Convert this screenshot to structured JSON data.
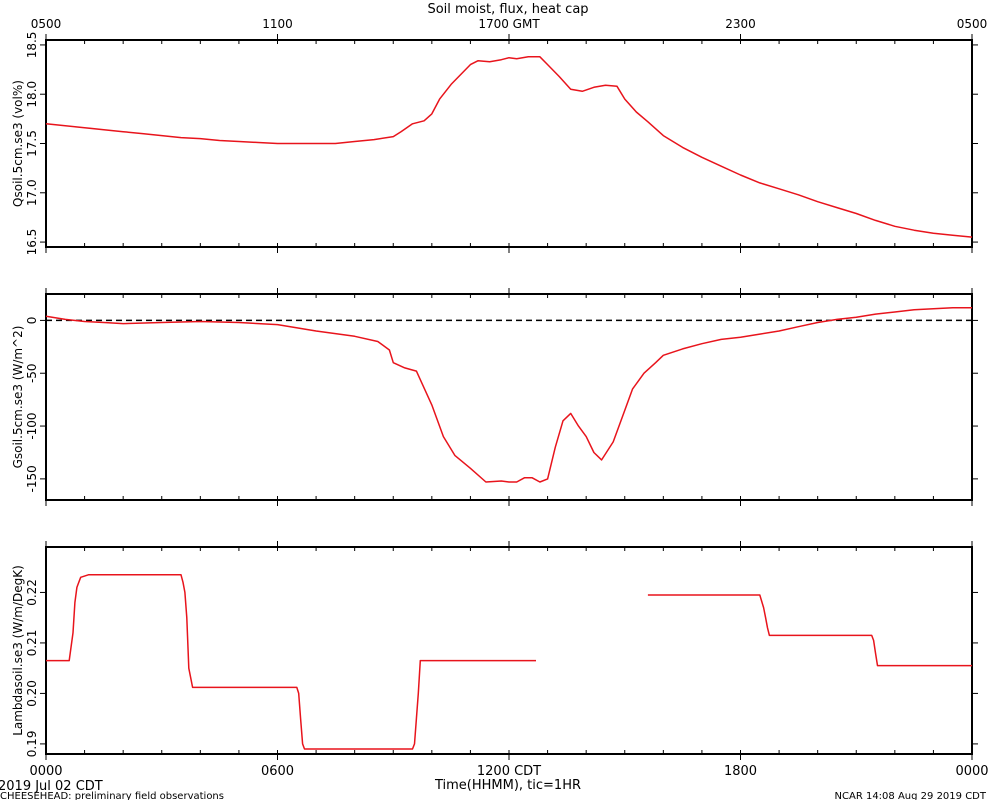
{
  "chart_data": [
    {
      "type": "line",
      "title": "Soil moist, flux, heat cap",
      "ylabel": "Qsoil.5cm.se3 (vol%)",
      "ylim": [
        16.45,
        18.55
      ],
      "yticks": [
        16.5,
        17.0,
        17.5,
        18.0,
        18.5
      ],
      "ytick_labels": [
        "16.5",
        "17.0",
        "17.5",
        "18.0",
        "18.5"
      ],
      "top_axis_ticks": [
        0,
        6,
        12,
        18,
        24
      ],
      "top_axis_labels": [
        "0500",
        "1100",
        "1700 GMT",
        "2300",
        "0500"
      ],
      "color": "#e8141c",
      "series": [
        {
          "x": [
            0,
            0.5,
            1,
            1.5,
            2,
            2.5,
            3,
            3.5,
            4,
            4.5,
            5,
            5.5,
            6,
            6.5,
            7,
            7.5,
            8,
            8.5,
            9,
            9.2,
            9.5,
            9.8,
            10,
            10.2,
            10.5,
            10.8,
            11,
            11.2,
            11.5,
            11.8,
            12,
            12.2,
            12.5,
            12.8,
            13,
            13.3,
            13.6,
            13.9,
            14.2,
            14.5,
            14.8,
            15,
            15.3,
            15.6,
            16,
            16.5,
            17,
            17.5,
            18,
            18.5,
            19,
            19.5,
            20,
            20.5,
            21,
            21.5,
            22,
            22.5,
            23,
            23.5,
            24
          ],
          "y": [
            17.7,
            17.68,
            17.66,
            17.64,
            17.62,
            17.6,
            17.58,
            17.56,
            17.55,
            17.53,
            17.52,
            17.51,
            17.5,
            17.5,
            17.5,
            17.5,
            17.52,
            17.54,
            17.57,
            17.62,
            17.7,
            17.73,
            17.8,
            17.95,
            18.1,
            18.22,
            18.3,
            18.34,
            18.33,
            18.35,
            18.37,
            18.36,
            18.38,
            18.38,
            18.3,
            18.18,
            18.05,
            18.03,
            18.07,
            18.09,
            18.08,
            17.95,
            17.82,
            17.72,
            17.58,
            17.46,
            17.36,
            17.27,
            17.18,
            17.1,
            17.04,
            16.98,
            16.91,
            16.85,
            16.79,
            16.72,
            16.66,
            16.62,
            16.59,
            16.57,
            16.55
          ]
        }
      ]
    },
    {
      "type": "line",
      "ylabel": "Gsoil.5cm.se3 (W/m^2)",
      "ylim": [
        -170,
        25
      ],
      "yticks": [
        -150,
        -100,
        -50,
        0
      ],
      "ytick_labels": [
        "-150",
        "-100",
        "-50",
        "0"
      ],
      "reference_line": 0,
      "color": "#e8141c",
      "series": [
        {
          "x": [
            0,
            0.5,
            1,
            1.5,
            2,
            3,
            4,
            5,
            6,
            7,
            8,
            8.6,
            8.9,
            9,
            9.3,
            9.6,
            10,
            10.3,
            10.6,
            11,
            11.4,
            11.8,
            12,
            12.2,
            12.4,
            12.6,
            12.8,
            13,
            13.2,
            13.4,
            13.6,
            13.8,
            14,
            14.2,
            14.4,
            14.7,
            15,
            15.2,
            15.5,
            15.8,
            16,
            16.5,
            17,
            17.5,
            18,
            18.5,
            19,
            19.5,
            20,
            20.5,
            21,
            21.5,
            22,
            22.5,
            23,
            23.5,
            24
          ],
          "y": [
            4,
            1,
            -1,
            -2,
            -3,
            -2,
            -1,
            -2,
            -4,
            -10,
            -15,
            -20,
            -28,
            -40,
            -45,
            -48,
            -80,
            -110,
            -128,
            -140,
            -153,
            -152,
            -153,
            -153,
            -149,
            -149,
            -153,
            -150,
            -120,
            -95,
            -88,
            -100,
            -110,
            -125,
            -132,
            -115,
            -85,
            -65,
            -50,
            -40,
            -33,
            -27,
            -22,
            -18,
            -16,
            -13,
            -10,
            -6,
            -2,
            1,
            3,
            6,
            8,
            10,
            11,
            12,
            12
          ]
        }
      ]
    },
    {
      "type": "line",
      "ylabel": "Lambdasoil.se3 (W/m/DegK)",
      "ylim": [
        0.188,
        0.229
      ],
      "yticks": [
        0.19,
        0.2,
        0.21,
        0.22
      ],
      "ytick_labels": [
        "0.19",
        "0.20",
        "0.21",
        "0.22"
      ],
      "color": "#e8141c",
      "segments": [
        {
          "x": [
            0,
            0.5,
            0.6,
            0.7,
            0.75,
            0.8,
            0.85,
            0.9,
            1.1,
            3.5,
            3.55,
            3.6,
            3.65,
            3.7,
            3.8,
            4,
            5,
            6,
            6.5,
            6.55,
            6.6,
            6.65,
            6.7,
            8,
            9.5,
            9.55,
            9.6,
            9.65,
            9.7,
            10.5,
            11.5,
            12,
            12.5,
            12.7
          ],
          "y": [
            0.2065,
            0.2065,
            0.2065,
            0.212,
            0.218,
            0.221,
            0.222,
            0.223,
            0.2235,
            0.2235,
            0.222,
            0.22,
            0.215,
            0.205,
            0.2012,
            0.2012,
            0.2012,
            0.2012,
            0.2012,
            0.2,
            0.195,
            0.19,
            0.189,
            0.189,
            0.189,
            0.19,
            0.195,
            0.2,
            0.2065,
            0.2065,
            0.2065,
            0.2065,
            0.2065,
            0.2065
          ]
        },
        {
          "x": [
            15.6,
            16.5,
            17.5,
            18.5,
            18.6,
            18.65,
            18.7,
            18.75,
            18.8,
            19.5,
            20.5,
            21.4,
            21.45,
            21.5,
            21.55,
            21.6,
            22.5,
            23.5,
            24
          ],
          "y": [
            0.2195,
            0.2195,
            0.2195,
            0.2195,
            0.217,
            0.215,
            0.213,
            0.2115,
            0.2115,
            0.2115,
            0.2115,
            0.2115,
            0.2105,
            0.208,
            0.2055,
            0.2055,
            0.2055,
            0.2055,
            0.2055
          ]
        }
      ]
    }
  ],
  "bottom_axis": {
    "ticks": [
      0,
      6,
      12,
      18,
      24
    ],
    "labels": [
      "0000",
      "0600",
      "1200 CDT",
      "1800",
      "0000"
    ],
    "title": "Time(HHMM), tic=1HR"
  },
  "footer": {
    "date": "2019 Jul 02 CDT",
    "project_note": "CHEESEHEAD: preliminary field observations",
    "credit": "NCAR 14:08 Aug 29 2019 CDT"
  }
}
